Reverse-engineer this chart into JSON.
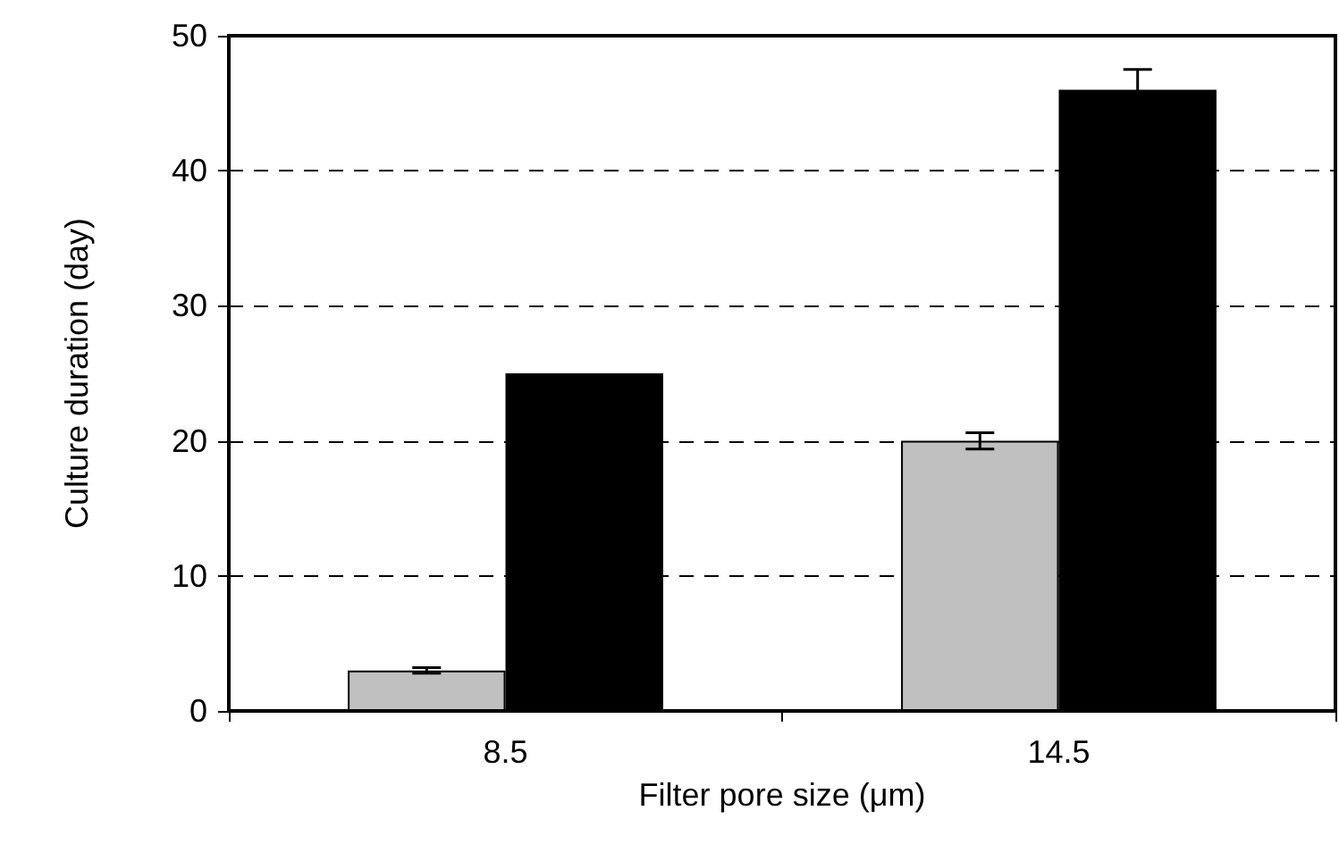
{
  "chart_data": {
    "type": "bar",
    "xlabel": "Filter pore size (μm)",
    "ylabel": "Culture duration (day)",
    "categories": [
      "8.5",
      "14.5"
    ],
    "series": [
      {
        "color": "#c0c0c0",
        "values": [
          3,
          20
        ],
        "errors": [
          0.2,
          0.6
        ]
      },
      {
        "color": "#000000",
        "values": [
          25,
          46
        ],
        "errors": [
          null,
          1.5
        ]
      }
    ],
    "ylim": [
      0,
      50
    ],
    "yticks": [
      0,
      10,
      20,
      30,
      40,
      50
    ],
    "grid": "y"
  }
}
